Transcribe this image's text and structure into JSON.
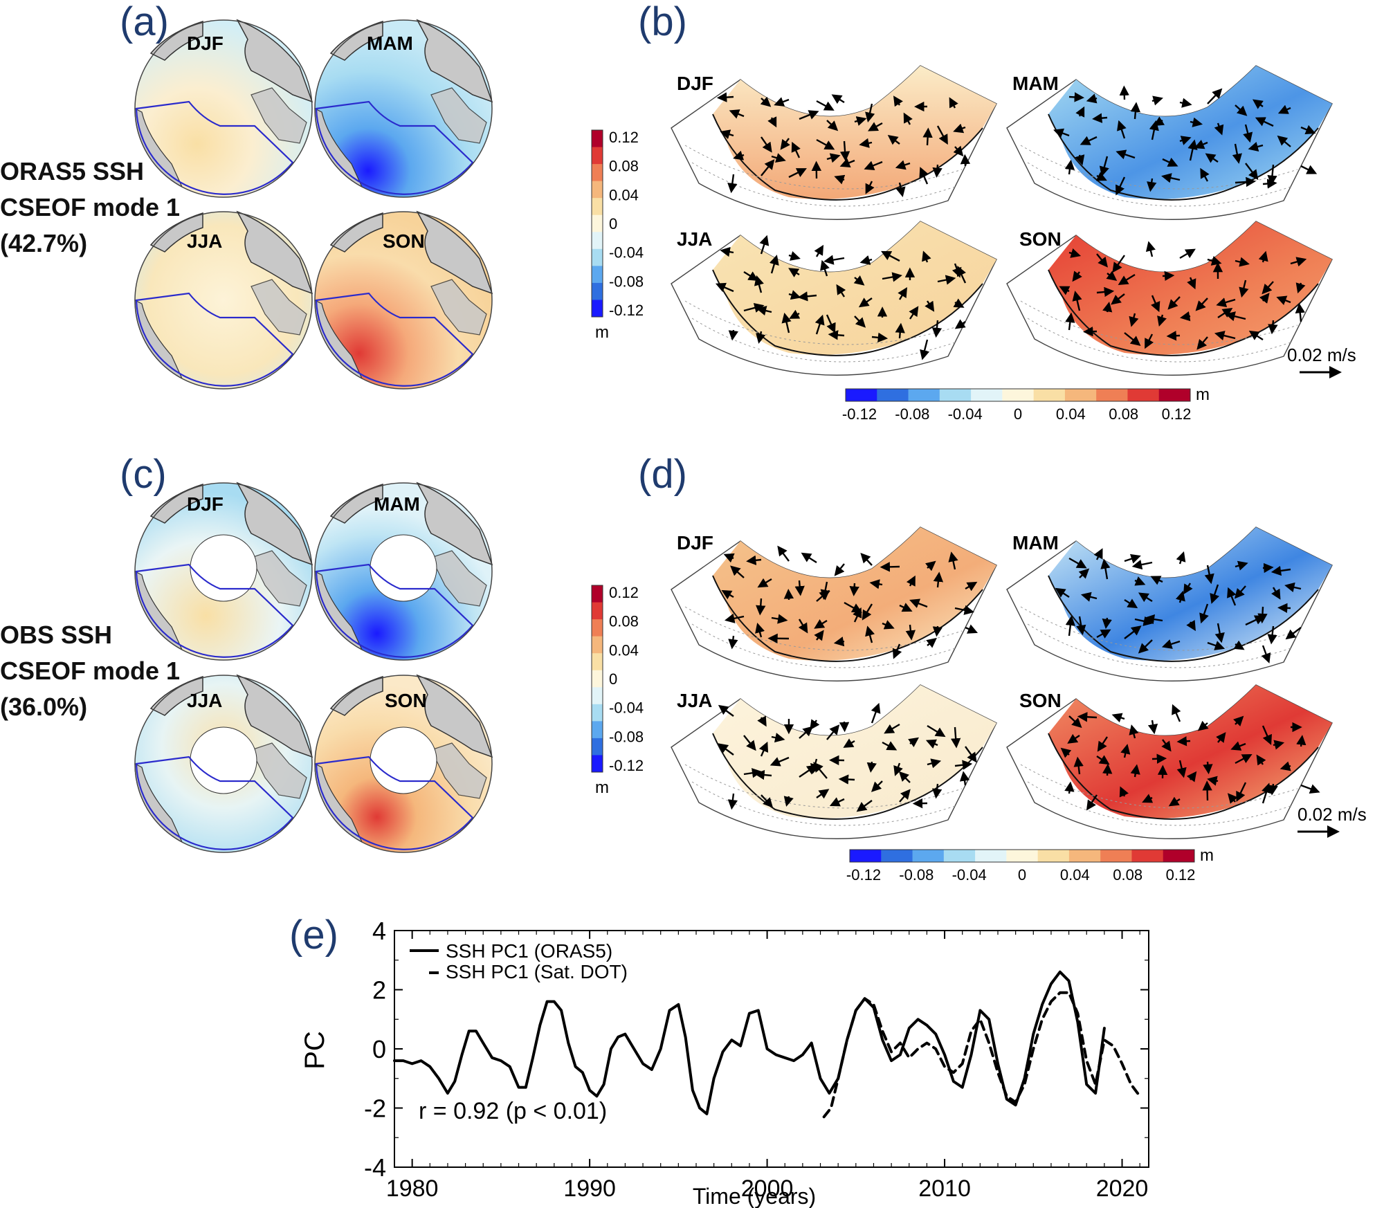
{
  "panels": {
    "a": {
      "letter": "(a)",
      "seasons": [
        "DJF",
        "MAM",
        "JJA",
        "SON"
      ]
    },
    "b": {
      "letter": "(b)",
      "seasons": [
        "DJF",
        "MAM",
        "JJA",
        "SON"
      ],
      "scale_label": "0.02 m/s"
    },
    "c": {
      "letter": "(c)",
      "seasons": [
        "DJF",
        "MAM",
        "JJA",
        "SON"
      ]
    },
    "d": {
      "letter": "(d)",
      "seasons": [
        "DJF",
        "MAM",
        "JJA",
        "SON"
      ],
      "scale_label": "0.02 m/s"
    },
    "e": {
      "letter": "(e)"
    }
  },
  "side_labels": {
    "row1": [
      "ORAS5 SSH",
      "CSEOF mode 1",
      "(42.7%)"
    ],
    "row2": [
      "OBS SSH",
      "CSEOF mode 1",
      "(36.0%)"
    ]
  },
  "colorbar_vertical": {
    "ticks": [
      "0.12",
      "0.08",
      "0.04",
      "0",
      "-0.04",
      "-0.08",
      "-0.12"
    ],
    "unit": "m"
  },
  "colorbar_horizontal": {
    "ticks": [
      "-0.12",
      "-0.08",
      "-0.04",
      "0",
      "0.04",
      "0.08",
      "0.12"
    ],
    "unit": "m"
  },
  "colors": {
    "panel_letter": "#1f3b6e",
    "region_outline": "#2a2acc",
    "land": "#c8c8c8",
    "scale": [
      "#1a1aff",
      "#2f6fe0",
      "#5ca8ef",
      "#a8dcf2",
      "#e2f4f8",
      "#fdf6dc",
      "#f9dfa5",
      "#f5b77c",
      "#ef7f55",
      "#e03a35",
      "#b0002a"
    ]
  },
  "chart_data": {
    "type": "line",
    "title": "",
    "xlabel": "Time (years)",
    "ylabel": "PC",
    "xlim": [
      1979,
      2021.5
    ],
    "ylim": [
      -4,
      4
    ],
    "xticks": [
      1980,
      1990,
      2000,
      2010,
      2020
    ],
    "yticks": [
      4,
      2,
      0,
      -2,
      -4
    ],
    "legend_position": "top-left",
    "annotation": "r = 0.92 (p < 0.01)",
    "series": [
      {
        "name": "SSH PC1 (ORAS5)",
        "style": "solid",
        "x": [
          1979.0,
          1979.5,
          1980.0,
          1980.5,
          1981.0,
          1981.5,
          1982.0,
          1982.4,
          1982.8,
          1983.2,
          1983.6,
          1984.0,
          1984.5,
          1985.0,
          1985.5,
          1986.0,
          1986.4,
          1986.8,
          1987.2,
          1987.6,
          1988.0,
          1988.4,
          1988.8,
          1989.2,
          1989.6,
          1990.0,
          1990.4,
          1990.8,
          1991.2,
          1991.6,
          1992.0,
          1992.5,
          1993.0,
          1993.5,
          1994.0,
          1994.5,
          1995.0,
          1995.4,
          1995.8,
          1996.2,
          1996.6,
          1997.0,
          1997.5,
          1998.0,
          1998.5,
          1999.0,
          1999.5,
          2000.0,
          2000.5,
          2001.0,
          2001.5,
          2002.0,
          2002.5,
          2003.0,
          2003.5,
          2004.0,
          2004.5,
          2005.0,
          2005.5,
          2006.0,
          2006.5,
          2007.0,
          2007.5,
          2008.0,
          2008.5,
          2009.0,
          2009.5,
          2010.0,
          2010.5,
          2011.0,
          2011.5,
          2012.0,
          2012.5,
          2013.0,
          2013.5,
          2014.0,
          2014.5,
          2015.0,
          2015.5,
          2016.0,
          2016.5,
          2017.0,
          2017.5,
          2018.0,
          2018.5,
          2019.0
        ],
        "y": [
          -0.4,
          -0.4,
          -0.5,
          -0.4,
          -0.6,
          -1.0,
          -1.5,
          -1.1,
          -0.2,
          0.6,
          0.6,
          0.2,
          -0.3,
          -0.4,
          -0.6,
          -1.3,
          -1.3,
          -0.3,
          0.8,
          1.6,
          1.6,
          1.3,
          0.2,
          -0.6,
          -0.8,
          -1.4,
          -1.6,
          -1.2,
          0.0,
          0.4,
          0.5,
          0.0,
          -0.5,
          -0.7,
          0.0,
          1.3,
          1.5,
          0.4,
          -1.4,
          -2.0,
          -2.2,
          -1.0,
          -0.1,
          0.3,
          0.1,
          1.2,
          1.3,
          0.0,
          -0.2,
          -0.3,
          -0.4,
          -0.2,
          0.2,
          -1.0,
          -1.5,
          -1.0,
          0.3,
          1.3,
          1.7,
          1.4,
          0.3,
          -0.4,
          -0.2,
          0.7,
          1.0,
          0.8,
          0.5,
          -0.2,
          -1.1,
          -1.3,
          -0.2,
          1.3,
          1.0,
          -0.5,
          -1.7,
          -1.9,
          -1.0,
          0.5,
          1.5,
          2.2,
          2.6,
          2.3,
          0.9,
          -1.2,
          -1.5,
          0.7
        ]
      },
      {
        "name": "SSH PC1 (Sat. DOT)",
        "style": "dashed",
        "x": [
          2003.2,
          2003.6,
          2004.0,
          2004.5,
          2005.0,
          2005.5,
          2006.0,
          2006.5,
          2007.0,
          2007.5,
          2008.0,
          2008.5,
          2009.0,
          2009.5,
          2010.0,
          2010.5,
          2011.0,
          2011.5,
          2012.0,
          2012.5,
          2013.0,
          2013.5,
          2014.0,
          2014.5,
          2015.0,
          2015.5,
          2016.0,
          2016.5,
          2017.0,
          2017.5,
          2018.0,
          2018.5,
          2019.0,
          2019.5,
          2020.0,
          2020.5,
          2021.0
        ],
        "y": [
          -2.3,
          -2.0,
          -1.0,
          0.3,
          1.3,
          1.7,
          1.5,
          0.6,
          -0.1,
          0.2,
          -0.3,
          0.0,
          0.2,
          0.0,
          -0.6,
          -0.8,
          -0.5,
          0.6,
          1.0,
          0.2,
          -0.8,
          -1.6,
          -1.8,
          -1.2,
          0.0,
          1.0,
          1.6,
          1.9,
          1.9,
          1.2,
          -0.4,
          -1.2,
          0.3,
          0.1,
          -0.5,
          -1.2,
          -1.6
        ]
      }
    ]
  }
}
